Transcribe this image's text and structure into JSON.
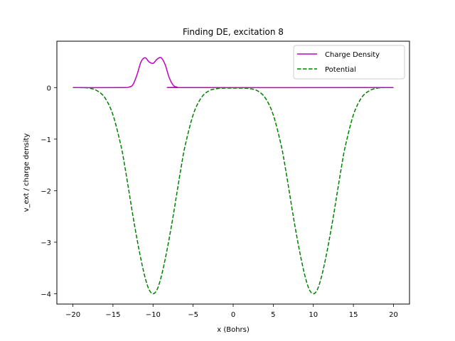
{
  "chart_data": {
    "type": "line",
    "title": "Finding DE, excitation 8",
    "xlabel": "x (Bohrs)",
    "ylabel": "v_ext / charge density",
    "xlim": [
      -22,
      22
    ],
    "ylim": [
      -4.2,
      0.9
    ],
    "xticks": [
      -20,
      -15,
      -10,
      -5,
      0,
      5,
      10,
      15,
      20
    ],
    "xtick_labels": [
      "−20",
      "−15",
      "−10",
      "−5",
      "0",
      "5",
      "10",
      "15",
      "20"
    ],
    "yticks": [
      0,
      -1,
      -2,
      -3,
      -4
    ],
    "ytick_labels": [
      "0",
      "−1",
      "−2",
      "−3",
      "−4"
    ],
    "grid": false,
    "legend_position": "top-right",
    "series": [
      {
        "name": "Charge Density",
        "color": "#bf00bf",
        "style": "solid",
        "x": [
          -20,
          -14,
          -13,
          -12.5,
          -12,
          -11.5,
          -11,
          -10.5,
          -10,
          -9.5,
          -9,
          -8.5,
          -8,
          -7.5,
          -7,
          -6,
          20
        ],
        "y": [
          0,
          0,
          0.01,
          0.06,
          0.25,
          0.5,
          0.58,
          0.5,
          0.47,
          0.55,
          0.58,
          0.45,
          0.2,
          0.05,
          0.01,
          0,
          0
        ]
      },
      {
        "name": "Potential",
        "color": "#008000",
        "style": "dashed",
        "x": [
          -20,
          -19,
          -18,
          -17,
          -16,
          -15,
          -14,
          -13.5,
          -13,
          -12.5,
          -12,
          -11.5,
          -11,
          -10.5,
          -10,
          -9.5,
          -9,
          -8.5,
          -8,
          -7.5,
          -7,
          -6.5,
          -6,
          -5,
          -4,
          -3,
          -2,
          -1,
          0,
          1,
          2,
          3,
          4,
          5,
          6,
          6.5,
          7,
          7.5,
          8,
          8.5,
          9,
          9.5,
          10,
          10.5,
          11,
          11.5,
          12,
          12.5,
          13,
          13.5,
          14,
          15,
          16,
          17,
          18,
          19,
          20
        ],
        "y": [
          0,
          0,
          -0.01,
          -0.06,
          -0.2,
          -0.53,
          -1.13,
          -1.55,
          -2.02,
          -2.5,
          -2.94,
          -3.34,
          -3.68,
          -3.92,
          -4.0,
          -3.92,
          -3.68,
          -3.34,
          -2.94,
          -2.5,
          -2.02,
          -1.55,
          -1.13,
          -0.53,
          -0.2,
          -0.06,
          -0.02,
          -0.01,
          -0.01,
          -0.01,
          -0.02,
          -0.06,
          -0.2,
          -0.53,
          -1.13,
          -1.55,
          -2.02,
          -2.5,
          -2.94,
          -3.34,
          -3.68,
          -3.92,
          -4.0,
          -3.92,
          -3.68,
          -3.34,
          -2.94,
          -2.5,
          -2.02,
          -1.55,
          -1.13,
          -0.53,
          -0.2,
          -0.06,
          -0.01,
          0,
          0
        ]
      }
    ]
  }
}
